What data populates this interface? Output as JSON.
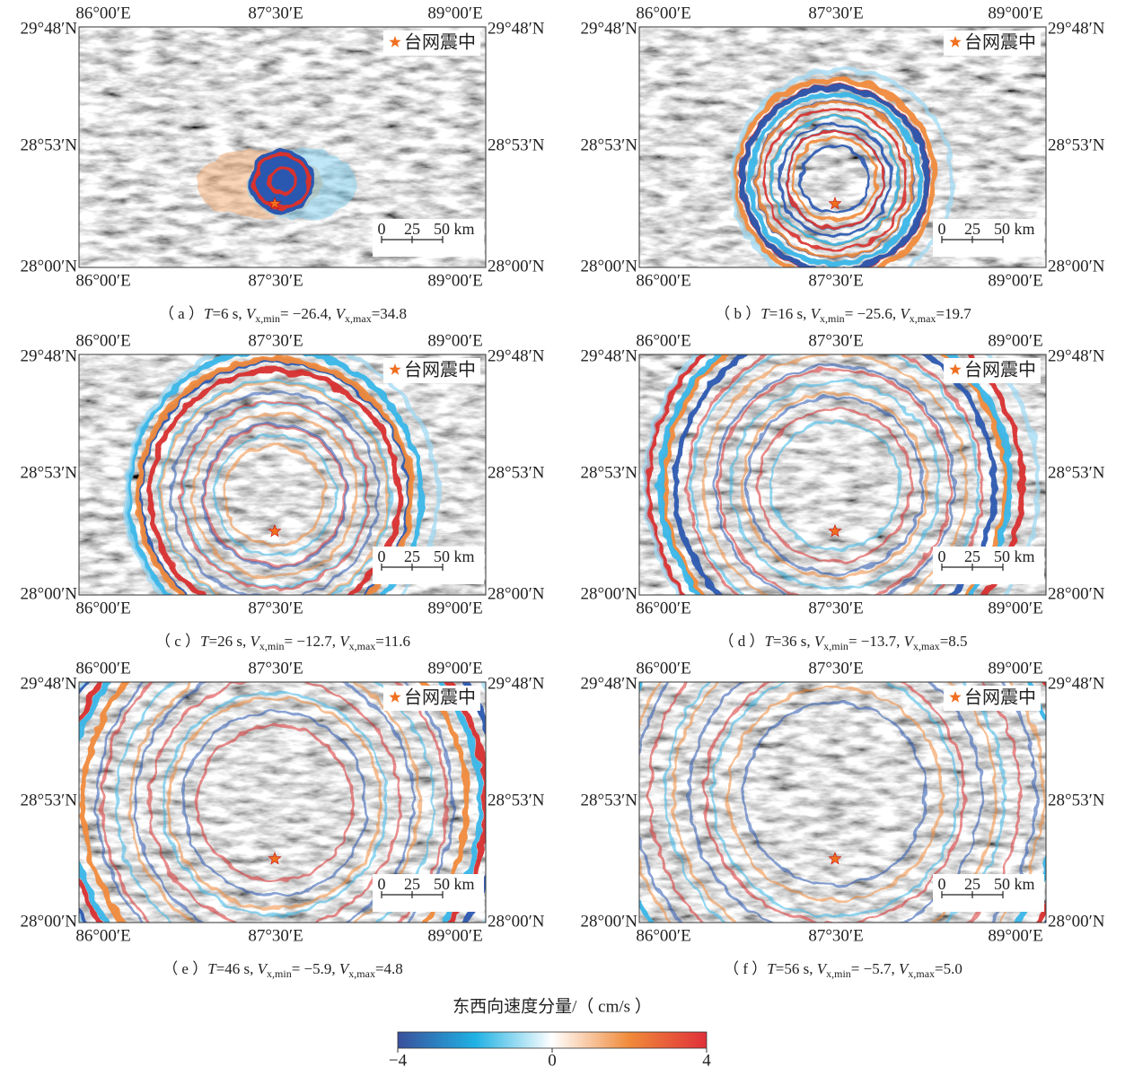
{
  "axes": {
    "lon_labels": [
      "86°00′E",
      "87°30′E",
      "89°00′E"
    ],
    "lat_labels": [
      "29°48′N",
      "28°53′N",
      "28°00′N"
    ]
  },
  "legend_label": "台网震中",
  "scale_bar": [
    "0",
    "25",
    "50 km"
  ],
  "panels": [
    {
      "caption": [
        {
          "text": "（ a ）"
        },
        {
          "text": "T",
          "italic": true
        },
        {
          "text": "=6 s, "
        },
        {
          "text": "V",
          "italic": true
        },
        {
          "text": "x,min",
          "sub": true
        },
        {
          "text": "= −26.4, "
        },
        {
          "text": "V",
          "italic": true
        },
        {
          "text": "x,max",
          "sub": true
        },
        {
          "text": "=34.8"
        }
      ]
    },
    {
      "caption": [
        {
          "text": "（ b ）"
        },
        {
          "text": "T",
          "italic": true
        },
        {
          "text": "=16 s, "
        },
        {
          "text": "V",
          "italic": true
        },
        {
          "text": "x,min",
          "sub": true
        },
        {
          "text": "= −25.6, "
        },
        {
          "text": "V",
          "italic": true
        },
        {
          "text": "x,max",
          "sub": true
        },
        {
          "text": "=19.7"
        }
      ]
    },
    {
      "caption": [
        {
          "text": "（ c ）"
        },
        {
          "text": "T",
          "italic": true
        },
        {
          "text": "=26 s, "
        },
        {
          "text": "V",
          "italic": true
        },
        {
          "text": "x,min",
          "sub": true
        },
        {
          "text": "= −12.7, "
        },
        {
          "text": "V",
          "italic": true
        },
        {
          "text": "x,max",
          "sub": true
        },
        {
          "text": "=11.6"
        }
      ]
    },
    {
      "caption": [
        {
          "text": "（ d ）"
        },
        {
          "text": "T",
          "italic": true
        },
        {
          "text": "=36 s, "
        },
        {
          "text": "V",
          "italic": true
        },
        {
          "text": "x,min",
          "sub": true
        },
        {
          "text": "= −13.7, "
        },
        {
          "text": "V",
          "italic": true
        },
        {
          "text": "x,max",
          "sub": true
        },
        {
          "text": "=8.5"
        }
      ]
    },
    {
      "caption": [
        {
          "text": "（ e ）"
        },
        {
          "text": "T",
          "italic": true
        },
        {
          "text": "=46 s, "
        },
        {
          "text": "V",
          "italic": true
        },
        {
          "text": "x,min",
          "sub": true
        },
        {
          "text": "= −5.9, "
        },
        {
          "text": "V",
          "italic": true
        },
        {
          "text": "x,max",
          "sub": true
        },
        {
          "text": "=4.8"
        }
      ]
    },
    {
      "caption": [
        {
          "text": "（ f ）"
        },
        {
          "text": "T",
          "italic": true
        },
        {
          "text": "=56 s, "
        },
        {
          "text": "V",
          "italic": true
        },
        {
          "text": "x,min",
          "sub": true
        },
        {
          "text": "= −5.7, "
        },
        {
          "text": "V",
          "italic": true
        },
        {
          "text": "x,max",
          "sub": true
        },
        {
          "text": "=5.0"
        }
      ]
    }
  ],
  "colorbar": {
    "title": "东西向速度分量/（ cm/s ）",
    "lim": [
      -4,
      4
    ],
    "ticks": [
      {
        "value": -4,
        "label": "−4"
      },
      0,
      4
    ]
  }
}
